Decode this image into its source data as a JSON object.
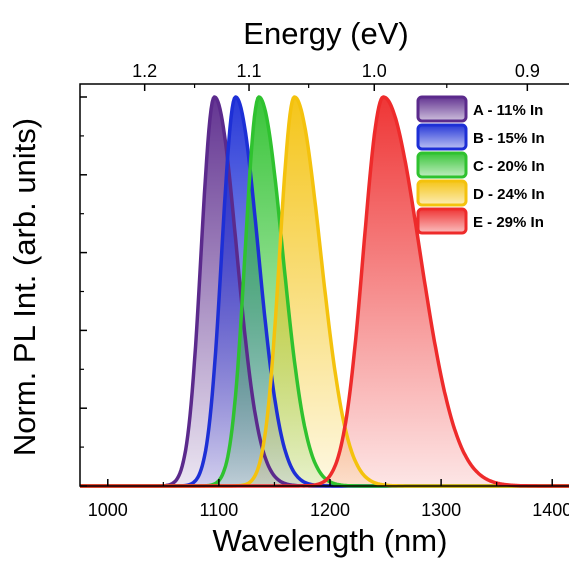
{
  "chart_data": {
    "type": "area",
    "xlabel": "Wavelength (nm)",
    "ylabel": "Norm. PL Int. (arb. units)",
    "top_xlabel": "Energy (eV)",
    "xlim": [
      975,
      1425
    ],
    "ylim": [
      0,
      1.0
    ],
    "x_ticks": [
      1000,
      1100,
      1200,
      1300,
      1400
    ],
    "x_tick_labels": [
      "1000",
      "1100",
      "1200",
      "1300",
      "1400"
    ],
    "top_ticks": [
      1.2,
      1.1,
      1.0,
      0.9
    ],
    "top_tick_labels": [
      "1.2",
      "1.1",
      "1.0",
      "0.9"
    ],
    "y_tick_labels_shown": false,
    "legend_position": "top-right",
    "series": [
      {
        "name": "A - 11% In",
        "color": "#5b2a8c",
        "peak_nm": 1096,
        "peak": 1.0,
        "fwhm_left_nm": 28,
        "fwhm_right_nm": 47
      },
      {
        "name": "B - 15% In",
        "color": "#1d2fd6",
        "peak_nm": 1115,
        "peak": 1.0,
        "fwhm_left_nm": 29,
        "fwhm_right_nm": 48
      },
      {
        "name": "C - 20% In",
        "color": "#2fc22f",
        "peak_nm": 1136,
        "peak": 1.0,
        "fwhm_left_nm": 29,
        "fwhm_right_nm": 50
      },
      {
        "name": "D - 24% In",
        "color": "#f4c20d",
        "peak_nm": 1168,
        "peak": 1.0,
        "fwhm_left_nm": 31,
        "fwhm_right_nm": 55
      },
      {
        "name": "E - 29% In",
        "color": "#ee2b2b",
        "peak_nm": 1248,
        "peak": 1.0,
        "fwhm_left_nm": 42,
        "fwhm_right_nm": 77
      }
    ]
  }
}
